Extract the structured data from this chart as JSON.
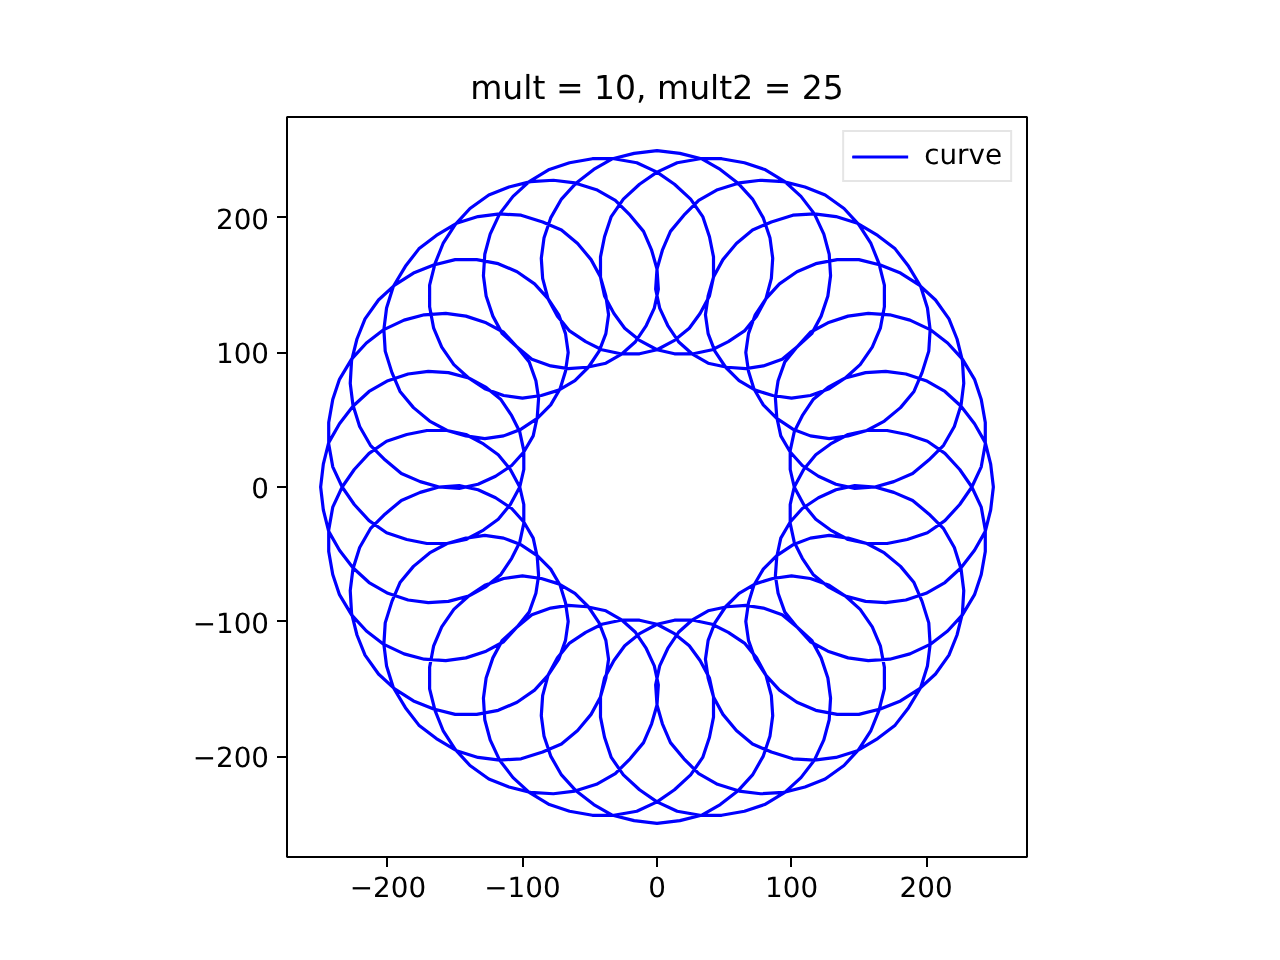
{
  "chart_data": {
    "type": "line",
    "title": "mult = 10, mult2 = 25",
    "x": [
      250,
      248,
      244,
      236,
      226,
      214,
      200,
      185,
      170,
      155,
      140,
      127,
      116,
      108,
      102,
      99,
      99,
      102,
      109,
      118,
      129,
      142,
      156,
      171,
      186,
      201,
      214,
      225,
      234,
      241,
      244,
      244,
      241,
      236,
      227,
      216,
      203,
      188,
      173,
      157,
      142,
      127,
      114,
      104,
      95,
      90,
      88,
      89,
      92,
      99,
      108,
      120,
      133,
      147,
      162,
      176,
      190,
      202,
      213,
      221,
      226,
      228,
      227,
      223,
      217,
      207,
      195,
      181,
      166,
      150,
      134,
      118,
      104,
      91,
      81,
      73,
      68,
      66,
      68,
      72,
      79,
      89,
      101,
      114,
      128,
      142,
      156,
      169,
      181,
      191,
      197,
      202,
      203,
      201,
      196,
      187,
      177,
      164,
      149,
      133,
      117,
      101,
      85,
      71,
      59,
      49,
      42,
      38,
      36,
      38,
      43,
      51,
      61,
      73,
      86,
      100,
      114,
      128,
      140,
      151,
      160,
      166,
      169,
      169,
      165,
      159,
      150,
      139,
      125,
      110,
      94,
      77,
      61,
      45,
      31,
      20,
      10,
      4,
      0,
      -1,
      2,
      8,
      16,
      26,
      38,
      52,
      66,
      79,
      93,
      104,
      115,
      122,
      127,
      129,
      128,
      124,
      117,
      107,
      95,
      80,
      65,
      48,
      32,
      15,
      0,
      -13,
      -25,
      -34,
      -39,
      -42,
      -42,
      -39,
      -32,
      -24,
      -13,
      0,
      13,
      27,
      41,
      53,
      65,
      74,
      81,
      85,
      86,
      84,
      79,
      71,
      60,
      47,
      33,
      17,
      0,
      -17,
      -33,
      -47,
      -60,
      -71,
      -79,
      -84,
      -86,
      -85,
      -81,
      -74,
      -65,
      -53,
      -41,
      -27,
      -13,
      0,
      13,
      24,
      32,
      39,
      42,
      42,
      39,
      34,
      25,
      13,
      0,
      -15,
      -32,
      -48,
      -65,
      -80,
      -95,
      -107,
      -117,
      -124,
      -128,
      -129,
      -127,
      -122,
      -115,
      -104,
      -93,
      -79,
      -66,
      -52,
      -38,
      -26,
      -16,
      -8,
      -2,
      1,
      0,
      -4,
      -10,
      -20,
      -31,
      -45,
      -61,
      -77,
      -94,
      -110,
      -125,
      -139,
      -150,
      -159,
      -165,
      -169,
      -169,
      -166,
      -160,
      -151,
      -140,
      -128,
      -114,
      -100,
      -86,
      -73,
      -61,
      -51,
      -43,
      -38,
      -36,
      -38,
      -42,
      -49,
      -59,
      -71,
      -85,
      -101,
      -117,
      -133,
      -149,
      -164,
      -177,
      -187,
      -196,
      -201,
      -203,
      -202,
      -197,
      -191,
      -181,
      -169,
      -156,
      -142,
      -128,
      -114,
      -101,
      -89,
      -79,
      -72,
      -68,
      -66,
      -68,
      -73,
      -81,
      -91,
      -104,
      -118,
      -134,
      -150,
      -166,
      -181,
      -195,
      -207,
      -217,
      -223,
      -227,
      -228,
      -226,
      -221,
      -213,
      -202,
      -190,
      -176,
      -162,
      -147,
      -133,
      -120,
      -108,
      -99,
      -92,
      -89,
      -88,
      -90,
      -95,
      -104,
      -114,
      -127,
      -142,
      -157,
      -173,
      -188,
      -203,
      -216,
      -227,
      -236,
      -241,
      -244,
      -244,
      -241,
      -234,
      -225,
      -214,
      -201,
      -186,
      -171,
      -156,
      -142,
      -129,
      -118,
      -109,
      -102,
      -99,
      -99,
      -102,
      -108,
      -116,
      -127,
      -140,
      -155,
      -170,
      -185,
      -200,
      -214,
      -226,
      -236,
      -244,
      -248,
      -250,
      -248,
      -244,
      -236,
      -226,
      -214,
      -200,
      -185,
      -170,
      -155,
      -140,
      -127,
      -116,
      -108,
      -102,
      -99,
      -99,
      -102,
      -109,
      -118,
      -129,
      -142,
      -156,
      -171,
      -186,
      -201,
      -214,
      -225,
      -234,
      -241,
      -244,
      -244,
      -241,
      -236,
      -227,
      -216,
      -203,
      -188,
      -173,
      -157,
      -142,
      -127,
      -114,
      -104,
      -95,
      -90,
      -88,
      -89,
      -92,
      -99,
      -108,
      -120,
      -133,
      -147,
      -162,
      -176,
      -190,
      -202,
      -213,
      -221,
      -226,
      -228,
      -227,
      -223,
      -217,
      -207,
      -195,
      -181,
      -166,
      -150,
      -134,
      -118,
      -104,
      -91,
      -81,
      -73,
      -68,
      -66,
      -68,
      -72,
      -79,
      -89,
      -101,
      -114,
      -128,
      -142,
      -156,
      -169,
      -181,
      -191,
      -197,
      -202,
      -203,
      -201,
      -196,
      -187,
      -177,
      -164,
      -149,
      -133,
      -117,
      -101,
      -85,
      -71,
      -59,
      -49,
      -42,
      -38,
      -36,
      -38,
      -43,
      -51,
      -61,
      -73,
      -86,
      -100,
      -114,
      -128,
      -140,
      -151,
      -160,
      -166,
      -169,
      -169,
      -165,
      -159,
      -150,
      -139,
      -125,
      -110,
      -94,
      -77,
      -61,
      -45,
      -31,
      -20,
      -10,
      -4,
      0,
      1,
      -2,
      -8,
      -16,
      -26,
      -38,
      -52,
      -66,
      -79,
      -93,
      -104,
      -115,
      -122,
      -127,
      -129,
      -128,
      -124,
      -117,
      -107,
      -95,
      -80,
      -65,
      -48,
      -32,
      -15,
      0,
      13,
      25,
      34,
      39,
      42,
      42,
      39,
      32,
      24,
      13,
      0,
      -13,
      -27,
      -41,
      -53,
      -65,
      -74,
      -81,
      -85,
      -86,
      -84,
      -79,
      -71,
      -60,
      -47,
      -33,
      -17,
      0,
      17,
      33,
      47,
      60,
      71,
      79,
      84,
      86,
      85,
      81,
      74,
      65,
      53,
      41,
      27,
      13,
      0,
      -13,
      -24,
      -32,
      -39,
      -42,
      -42,
      -39,
      -34,
      -25,
      -13,
      0,
      15,
      32,
      48,
      65,
      80,
      95,
      107,
      117,
      124,
      128,
      129,
      127,
      122,
      115,
      104,
      93,
      79,
      66,
      52,
      38,
      26,
      16,
      8,
      2,
      -1,
      0,
      4,
      10,
      20,
      31,
      45,
      61,
      77,
      94,
      110,
      125,
      139,
      150,
      159,
      165,
      169,
      169,
      166,
      160,
      151,
      140,
      128,
      114,
      100,
      86,
      73,
      61,
      51,
      43,
      38,
      36,
      38,
      42,
      49,
      59,
      71,
      85,
      101,
      117,
      133,
      149,
      164,
      177,
      187,
      196,
      201,
      203,
      202,
      197,
      191,
      181,
      169,
      156,
      142,
      128,
      114,
      101,
      89,
      79,
      72,
      68,
      66,
      68,
      73,
      81,
      91,
      104,
      118,
      134,
      150,
      166,
      181,
      195,
      207,
      217,
      223,
      227,
      228,
      226,
      221,
      213,
      202,
      190,
      176,
      162,
      147,
      133,
      120,
      108,
      99,
      92,
      89,
      88,
      90,
      95,
      104,
      114,
      127,
      142,
      157,
      173,
      188,
      203,
      216,
      227,
      236,
      241,
      244,
      244,
      241,
      234,
      225,
      214,
      201,
      186,
      171,
      156,
      142,
      129,
      118,
      109,
      102,
      99,
      99,
      102,
      108,
      116,
      127,
      140,
      155,
      170,
      185,
      200,
      214,
      226,
      236,
      244,
      248,
      250
    ],
    "series": [
      {
        "name": "curve",
        "color": "#0000ff",
        "values": [
          0,
          17,
          33,
          47,
          60,
          71,
          79,
          84,
          86,
          85,
          81,
          74,
          65,
          53,
          41,
          27,
          13,
          0,
          -13,
          -24,
          -32,
          -39,
          -42,
          -42,
          -39,
          -34,
          -25,
          -13,
          0,
          15,
          32,
          48,
          65,
          80,
          95,
          107,
          117,
          124,
          128,
          129,
          127,
          122,
          115,
          104,
          93,
          79,
          66,
          52,
          38,
          26,
          16,
          8,
          2,
          -1,
          0,
          4,
          10,
          20,
          31,
          45,
          61,
          77,
          94,
          110,
          125,
          139,
          150,
          159,
          165,
          169,
          169,
          166,
          160,
          151,
          140,
          128,
          114,
          100,
          86,
          73,
          61,
          51,
          43,
          38,
          36,
          38,
          42,
          49,
          59,
          71,
          85,
          101,
          117,
          133,
          149,
          164,
          177,
          187,
          196,
          201,
          203,
          202,
          197,
          191,
          181,
          169,
          156,
          142,
          128,
          114,
          101,
          89,
          79,
          72,
          68,
          66,
          68,
          73,
          81,
          91,
          104,
          118,
          134,
          150,
          166,
          181,
          195,
          207,
          217,
          223,
          227,
          228,
          226,
          221,
          213,
          202,
          190,
          176,
          162,
          147,
          133,
          120,
          108,
          99,
          92,
          89,
          88,
          90,
          95,
          104,
          114,
          127,
          142,
          157,
          173,
          188,
          203,
          216,
          227,
          236,
          241,
          244,
          244,
          241,
          234,
          225,
          214,
          201,
          186,
          171,
          156,
          142,
          129,
          118,
          109,
          102,
          99,
          99,
          102,
          108,
          116,
          127,
          140,
          155,
          170,
          185,
          200,
          214,
          226,
          236,
          244,
          248,
          250,
          248,
          244,
          236,
          226,
          214,
          200,
          185,
          170,
          155,
          140,
          127,
          116,
          108,
          102,
          99,
          99,
          102,
          109,
          118,
          129,
          142,
          156,
          171,
          186,
          201,
          214,
          225,
          234,
          241,
          244,
          244,
          241,
          236,
          227,
          216,
          203,
          188,
          173,
          157,
          142,
          127,
          114,
          104,
          95,
          90,
          88,
          89,
          92,
          99,
          108,
          120,
          133,
          147,
          162,
          176,
          190,
          202,
          213,
          221,
          226,
          228,
          227,
          223,
          217,
          207,
          195,
          181,
          166,
          150,
          134,
          118,
          104,
          91,
          81,
          73,
          68,
          66,
          68,
          72,
          79,
          89,
          101,
          114,
          128,
          142,
          156,
          169,
          181,
          191,
          197,
          202,
          203,
          201,
          196,
          187,
          177,
          164,
          149,
          133,
          117,
          101,
          85,
          71,
          59,
          49,
          42,
          38,
          36,
          38,
          43,
          51,
          61,
          73,
          86,
          100,
          114,
          128,
          140,
          151,
          160,
          166,
          169,
          169,
          165,
          159,
          150,
          139,
          125,
          110,
          94,
          77,
          61,
          45,
          31,
          20,
          10,
          4,
          0,
          -1,
          2,
          8,
          16,
          26,
          38,
          52,
          66,
          79,
          93,
          104,
          115,
          122,
          127,
          129,
          128,
          124,
          117,
          107,
          95,
          80,
          65,
          48,
          32,
          15,
          0,
          -13,
          -25,
          -34,
          -39,
          -42,
          -42,
          -39,
          -32,
          -24,
          -13,
          0,
          13,
          27,
          41,
          53,
          65,
          74,
          81,
          85,
          86,
          84,
          79,
          71,
          60,
          47,
          33,
          17,
          0,
          -17,
          -33,
          -47,
          -60,
          -71,
          -79,
          -84,
          -86,
          -85,
          -81,
          -74,
          -65,
          -53,
          -41,
          -27,
          -13,
          0,
          13,
          24,
          32,
          39,
          42,
          42,
          39,
          34,
          25,
          13,
          0,
          -15,
          -32,
          -48,
          -65,
          -80,
          -95,
          -107,
          -117,
          -124,
          -128,
          -129,
          -127,
          -122,
          -115,
          -104,
          -93,
          -79,
          -66,
          -52,
          -38,
          -26,
          -16,
          -8,
          -2,
          1,
          0,
          -4,
          -10,
          -20,
          -31,
          -45,
          -61,
          -77,
          -94,
          -110,
          -125,
          -139,
          -150,
          -159,
          -165,
          -169,
          -169,
          -166,
          -160,
          -151,
          -140,
          -128,
          -114,
          -100,
          -86,
          -73,
          -61,
          -51,
          -43,
          -38,
          -36,
          -38,
          -42,
          -49,
          -59,
          -71,
          -85,
          -101,
          -117,
          -133,
          -149,
          -164,
          -177,
          -187,
          -196,
          -201,
          -203,
          -202,
          -197,
          -191,
          -181,
          -169,
          -156,
          -142,
          -128,
          -114,
          -101,
          -89,
          -79,
          -72,
          -68,
          -66,
          -68,
          -73,
          -81,
          -91,
          -104,
          -118,
          -134,
          -150,
          -166,
          -181,
          -195,
          -207,
          -217,
          -223,
          -227,
          -228,
          -226,
          -221,
          -213,
          -202,
          -190,
          -176,
          -162,
          -147,
          -133,
          -120,
          -108,
          -99,
          -92,
          -89,
          -88,
          -90,
          -95,
          -104,
          -114,
          -127,
          -142,
          -157,
          -173,
          -188,
          -203,
          -216,
          -227,
          -236,
          -241,
          -244,
          -244,
          -241,
          -234,
          -225,
          -214,
          -201,
          -186,
          -171,
          -156,
          -142,
          -129,
          -118,
          -109,
          -102,
          -99,
          -99,
          -102,
          -108,
          -116,
          -127,
          -140,
          -155,
          -170,
          -185,
          -200,
          -214,
          -226,
          -236,
          -244,
          -248,
          -250,
          -248,
          -244,
          -236,
          -226,
          -214,
          -200,
          -185,
          -170,
          -155,
          -140,
          -127,
          -116,
          -108,
          -102,
          -99,
          -99,
          -102,
          -109,
          -118,
          -129,
          -142,
          -156,
          -171,
          -186,
          -201,
          -214,
          -225,
          -234,
          -241,
          -244,
          -244,
          -241,
          -236,
          -227,
          -216,
          -203,
          -188,
          -173,
          -157,
          -142,
          -127,
          -114,
          -104,
          -95,
          -90,
          -88,
          -89,
          -92,
          -99,
          -108,
          -120,
          -133,
          -147,
          -162,
          -176,
          -190,
          -202,
          -213,
          -221,
          -226,
          -228,
          -227,
          -223,
          -217,
          -207,
          -195,
          -181,
          -166,
          -150,
          -134,
          -118,
          -104,
          -91,
          -81,
          -73,
          -68,
          -66,
          -68,
          -72,
          -79,
          -89,
          -101,
          -114,
          -128,
          -142,
          -156,
          -169,
          -181,
          -191,
          -197,
          -202,
          -203,
          -201,
          -196,
          -187,
          -177,
          -164,
          -149,
          -133,
          -117,
          -101,
          -85,
          -71,
          -59,
          -49,
          -42,
          -38,
          -36,
          -38,
          -43,
          -51,
          -61,
          -73,
          -86,
          -100,
          -114,
          -128,
          -140,
          -151,
          -160,
          -166,
          -169,
          -169,
          -165,
          -159,
          -150,
          -139,
          -125,
          -110,
          -94,
          -77,
          -61,
          -45,
          -31,
          -20,
          -10,
          -4,
          0,
          1,
          -2,
          -8,
          -16,
          -26,
          -38,
          -52,
          -66,
          -79,
          -93,
          -104,
          -115,
          -122,
          -127,
          -129,
          -128,
          -124,
          -117,
          -107,
          -95,
          -80,
          -65,
          -48,
          -32,
          -15,
          0,
          13,
          25,
          34,
          39,
          42,
          42,
          39,
          32,
          24,
          13,
          0,
          -13,
          -27,
          -41,
          -53,
          -65,
          -74,
          -81,
          -85,
          -86,
          -84,
          -79,
          -71,
          -60,
          -47,
          -33,
          -17,
          0
        ]
      }
    ],
    "xlim": [
      -275,
      275
    ],
    "ylim": [
      -275,
      275
    ],
    "xticks": [
      -200,
      -100,
      0,
      100,
      200
    ],
    "yticks": [
      -200,
      -100,
      0,
      100,
      200
    ],
    "grid": false,
    "legend": "top right",
    "line_style": "solid"
  }
}
